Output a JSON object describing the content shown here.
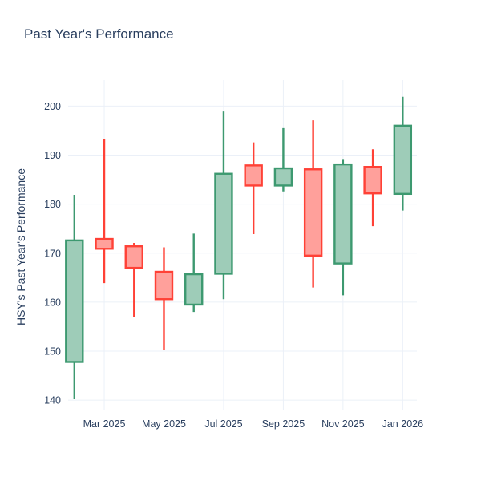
{
  "chart_data": {
    "type": "candlestick",
    "title": "Past Year's Performance",
    "ylabel": "HSY's Past Year's Performance",
    "xlabel": "",
    "legend": null,
    "grid": true,
    "ylim": [
      137.9,
      205.3
    ],
    "y_ticks": [
      140,
      150,
      160,
      170,
      180,
      190,
      200
    ],
    "x_tick_labels": [
      "Mar 2025",
      "May 2025",
      "Jul 2025",
      "Sep 2025",
      "Nov 2025",
      "Jan 2026"
    ],
    "x_tick_indices": [
      1,
      3,
      5,
      7,
      9,
      11
    ],
    "series": [
      {
        "month": "Feb 2025",
        "open": 147.8,
        "high": 181.9,
        "low": 140.2,
        "close": 172.6,
        "direction": "up"
      },
      {
        "month": "Mar 2025",
        "open": 172.9,
        "high": 193.3,
        "low": 163.9,
        "close": 170.9,
        "direction": "down"
      },
      {
        "month": "Apr 2025",
        "open": 171.4,
        "high": 172.1,
        "low": 157.0,
        "close": 167.0,
        "direction": "down"
      },
      {
        "month": "May 2025",
        "open": 166.2,
        "high": 171.2,
        "low": 150.2,
        "close": 160.6,
        "direction": "down"
      },
      {
        "month": "Jun 2025",
        "open": 159.5,
        "high": 174.0,
        "low": 158.0,
        "close": 165.7,
        "direction": "up"
      },
      {
        "month": "Jul 2025",
        "open": 165.8,
        "high": 198.9,
        "low": 160.6,
        "close": 186.2,
        "direction": "up"
      },
      {
        "month": "Aug 2025",
        "open": 187.9,
        "high": 192.6,
        "low": 173.9,
        "close": 183.8,
        "direction": "down"
      },
      {
        "month": "Sep 2025",
        "open": 183.8,
        "high": 195.5,
        "low": 182.6,
        "close": 187.3,
        "direction": "up"
      },
      {
        "month": "Oct 2025",
        "open": 187.1,
        "high": 197.1,
        "low": 163.0,
        "close": 169.5,
        "direction": "down"
      },
      {
        "month": "Nov 2025",
        "open": 167.9,
        "high": 189.2,
        "low": 161.4,
        "close": 188.1,
        "direction": "up"
      },
      {
        "month": "Dec 2025",
        "open": 187.6,
        "high": 191.2,
        "low": 175.5,
        "close": 182.2,
        "direction": "down"
      },
      {
        "month": "Jan 2026",
        "open": 182.1,
        "high": 201.9,
        "low": 178.7,
        "close": 196.0,
        "direction": "up"
      }
    ],
    "colors": {
      "increasing_line": "#3D9970",
      "increasing_fill": "#9ECCB8",
      "decreasing_line": "#FF4136",
      "decreasing_fill": "#FFA09B",
      "grid": "#EBF0F8",
      "text": "#2A3F5F",
      "background": "#FFFFFF"
    }
  }
}
